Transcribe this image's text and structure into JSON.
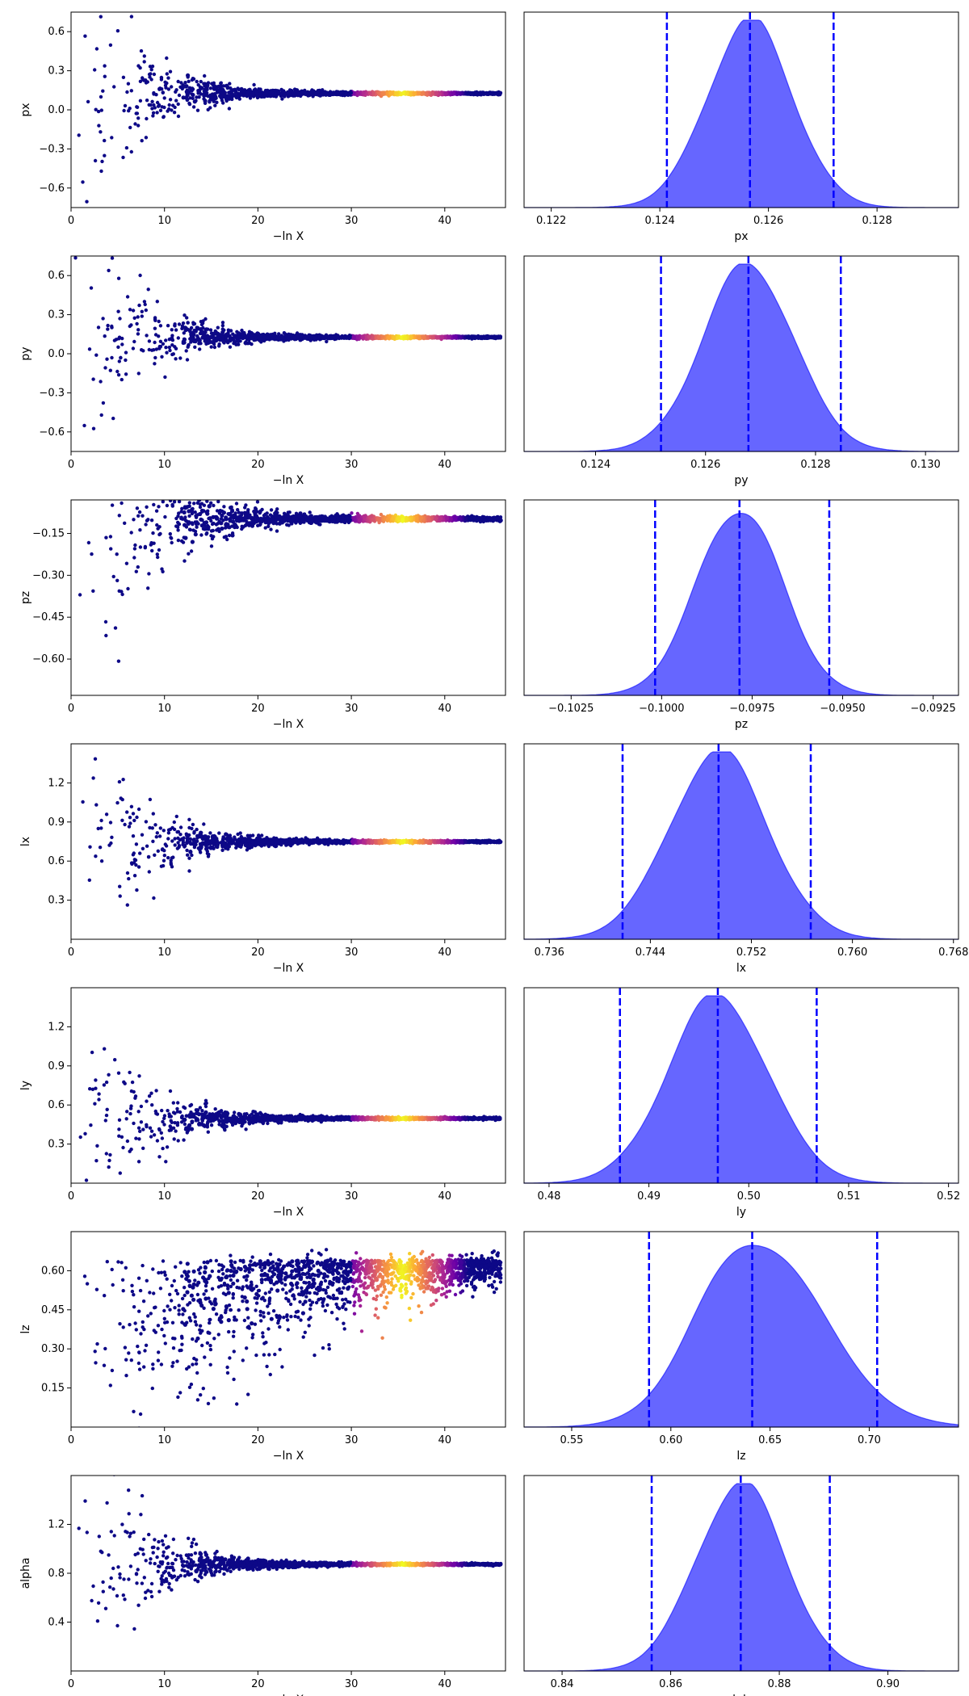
{
  "chart_data": [
    {
      "type": "scatter",
      "name": "trace",
      "param": "px",
      "xlabel": "−ln X",
      "ylabel": "px",
      "xlim": [
        0,
        46.5
      ],
      "ylim": [
        -0.75,
        0.75
      ],
      "xticks": [
        0,
        10,
        20,
        30,
        40
      ],
      "yticks": [
        -0.6,
        -0.3,
        0.0,
        0.3,
        0.6
      ],
      "ytick_labels": [
        "−0.6",
        "−0.3",
        "0.0",
        "0.3",
        "0.6"
      ],
      "final_value": 0.1257,
      "initial_spread": 0.75,
      "colormap": [
        "#0d0887",
        "#6a00a8",
        "#b12a90",
        "#e16462",
        "#fca636",
        "#f0f921"
      ]
    },
    {
      "type": "area",
      "name": "posterior",
      "param": "px",
      "xlabel": "px",
      "xlim": [
        0.1215,
        0.1295
      ],
      "xticks": [
        0.122,
        0.124,
        0.126,
        0.128
      ],
      "xtick_labels": [
        "0.122",
        "0.124",
        "0.126",
        "0.128"
      ],
      "mean": 0.12566,
      "sigma": 0.00078,
      "quantiles": [
        0.12413,
        0.12566,
        0.1272
      ],
      "color": "#0000ff"
    },
    {
      "type": "scatter",
      "name": "trace",
      "param": "py",
      "xlabel": "−ln X",
      "ylabel": "py",
      "xlim": [
        0,
        46.5
      ],
      "ylim": [
        -0.75,
        0.75
      ],
      "xticks": [
        0,
        10,
        20,
        30,
        40
      ],
      "yticks": [
        -0.6,
        -0.3,
        0.0,
        0.3,
        0.6
      ],
      "ytick_labels": [
        "−0.6",
        "−0.3",
        "0.0",
        "0.3",
        "0.6"
      ],
      "final_value": 0.1268,
      "initial_spread": 0.75,
      "colormap": [
        "#0d0887",
        "#6a00a8",
        "#b12a90",
        "#e16462",
        "#fca636",
        "#f0f921"
      ]
    },
    {
      "type": "area",
      "name": "posterior",
      "param": "py",
      "xlabel": "py",
      "xlim": [
        0.1227,
        0.1306
      ],
      "xticks": [
        0.124,
        0.126,
        0.128,
        0.13
      ],
      "xtick_labels": [
        "0.124",
        "0.126",
        "0.128",
        "0.130"
      ],
      "mean": 0.12678,
      "sigma": 0.00083,
      "quantiles": [
        0.12519,
        0.12678,
        0.12846
      ],
      "color": "#0000ff"
    },
    {
      "type": "scatter",
      "name": "trace",
      "param": "pz",
      "xlabel": "−ln X",
      "ylabel": "pz",
      "xlim": [
        0,
        46.5
      ],
      "ylim": [
        -0.73,
        -0.03
      ],
      "xticks": [
        0,
        10,
        20,
        30,
        40
      ],
      "yticks": [
        -0.6,
        -0.45,
        -0.3,
        -0.15
      ],
      "ytick_labels": [
        "−0.60",
        "−0.45",
        "−0.30",
        "−0.15"
      ],
      "final_value": -0.0978,
      "initial_spread": 0.65,
      "colormap": [
        "#0d0887",
        "#6a00a8",
        "#b12a90",
        "#e16462",
        "#fca636",
        "#f0f921"
      ]
    },
    {
      "type": "area",
      "name": "posterior",
      "param": "pz",
      "xlabel": "pz",
      "xlim": [
        -0.1038,
        -0.0918
      ],
      "xticks": [
        -0.1025,
        -0.1,
        -0.0975,
        -0.095,
        -0.0925
      ],
      "xtick_labels": [
        "−0.1025",
        "−0.1000",
        "−0.0975",
        "−0.0950",
        "−0.0925"
      ],
      "mean": -0.09785,
      "sigma": 0.00118,
      "quantiles": [
        -0.10018,
        -0.09785,
        -0.09537
      ],
      "color": "#0000ff"
    },
    {
      "type": "scatter",
      "name": "trace",
      "param": "lx",
      "xlabel": "−ln X",
      "ylabel": "lx",
      "xlim": [
        0,
        46.5
      ],
      "ylim": [
        0.0,
        1.5
      ],
      "xticks": [
        0,
        10,
        20,
        30,
        40
      ],
      "yticks": [
        0.3,
        0.6,
        0.9,
        1.2
      ],
      "ytick_labels": [
        "0.3",
        "0.6",
        "0.9",
        "1.2"
      ],
      "final_value": 0.749,
      "initial_spread": 0.75,
      "colormap": [
        "#0d0887",
        "#6a00a8",
        "#b12a90",
        "#e16462",
        "#fca636",
        "#f0f921"
      ]
    },
    {
      "type": "area",
      "name": "posterior",
      "param": "lx",
      "xlabel": "lx",
      "xlim": [
        0.734,
        0.7684
      ],
      "xticks": [
        0.736,
        0.744,
        0.752,
        0.76,
        0.768
      ],
      "xtick_labels": [
        "0.736",
        "0.744",
        "0.752",
        "0.760",
        "0.768"
      ],
      "mean": 0.7494,
      "sigma": 0.0039,
      "quantiles": [
        0.7418,
        0.7494,
        0.7567
      ],
      "color": "#0000ff"
    },
    {
      "type": "scatter",
      "name": "trace",
      "param": "ly",
      "xlabel": "−ln X",
      "ylabel": "ly",
      "xlim": [
        0,
        46.5
      ],
      "ylim": [
        0.0,
        1.5
      ],
      "xticks": [
        0,
        10,
        20,
        30,
        40
      ],
      "yticks": [
        0.3,
        0.6,
        0.9,
        1.2
      ],
      "ytick_labels": [
        "0.3",
        "0.6",
        "0.9",
        "1.2"
      ],
      "final_value": 0.497,
      "initial_spread": 0.75,
      "colormap": [
        "#0d0887",
        "#6a00a8",
        "#b12a90",
        "#e16462",
        "#fca636",
        "#f0f921"
      ]
    },
    {
      "type": "area",
      "name": "posterior",
      "param": "ly",
      "xlabel": "ly",
      "xlim": [
        0.4775,
        0.521
      ],
      "xticks": [
        0.48,
        0.49,
        0.5,
        0.51,
        0.52
      ],
      "xtick_labels": [
        "0.48",
        "0.49",
        "0.50",
        "0.51",
        "0.52"
      ],
      "mean": 0.4969,
      "sigma": 0.005,
      "quantiles": [
        0.4871,
        0.4969,
        0.5068
      ],
      "color": "#0000ff"
    },
    {
      "type": "scatter",
      "name": "trace",
      "param": "lz",
      "xlabel": "−ln X",
      "ylabel": "lz",
      "xlim": [
        0,
        46.5
      ],
      "ylim": [
        0.0,
        0.75
      ],
      "xticks": [
        0,
        10,
        20,
        30,
        40
      ],
      "yticks": [
        0.15,
        0.3,
        0.45,
        0.6
      ],
      "ytick_labels": [
        "0.15",
        "0.30",
        "0.45",
        "0.60"
      ],
      "final_value": 0.64,
      "initial_spread": 0.6,
      "colormap": [
        "#0d0887",
        "#6a00a8",
        "#b12a90",
        "#e16462",
        "#fca636",
        "#f0f921"
      ]
    },
    {
      "type": "area",
      "name": "posterior",
      "param": "lz",
      "xlabel": "lz",
      "xlim": [
        0.526,
        0.745
      ],
      "xticks": [
        0.55,
        0.6,
        0.65,
        0.7
      ],
      "xtick_labels": [
        "0.55",
        "0.60",
        "0.65",
        "0.70"
      ],
      "mean": 0.641,
      "sigma": 0.028,
      "quantiles": [
        0.589,
        0.641,
        0.704
      ],
      "color": "#0000ff"
    },
    {
      "type": "scatter",
      "name": "trace",
      "param": "alpha",
      "xlabel": "−ln X",
      "ylabel": "alpha",
      "xlim": [
        0,
        46.5
      ],
      "ylim": [
        0.0,
        1.6
      ],
      "xticks": [
        0,
        10,
        20,
        30,
        40
      ],
      "yticks": [
        0.4,
        0.8,
        1.2
      ],
      "ytick_labels": [
        "0.4",
        "0.8",
        "1.2"
      ],
      "final_value": 0.873,
      "initial_spread": 0.8,
      "colormap": [
        "#0d0887",
        "#6a00a8",
        "#b12a90",
        "#e16462",
        "#fca636",
        "#f0f921"
      ]
    },
    {
      "type": "area",
      "name": "posterior",
      "param": "alpha",
      "xlabel": "alpha",
      "xlim": [
        0.833,
        0.913
      ],
      "xticks": [
        0.84,
        0.86,
        0.88,
        0.9
      ],
      "xtick_labels": [
        "0.84",
        "0.86",
        "0.88",
        "0.90"
      ],
      "mean": 0.8729,
      "sigma": 0.0082,
      "quantiles": [
        0.8565,
        0.8729,
        0.8893
      ],
      "color": "#0000ff"
    }
  ]
}
